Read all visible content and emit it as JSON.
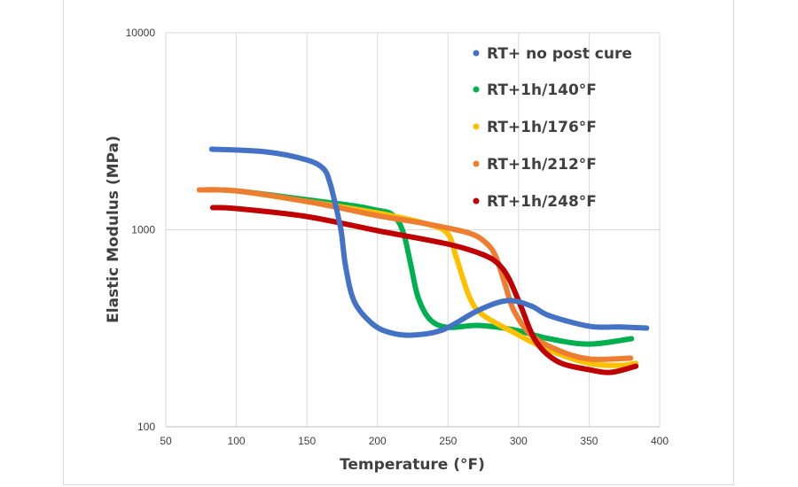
{
  "chart_data": {
    "type": "line",
    "title": "",
    "xlabel": "Temperature (°F)",
    "ylabel": "Elastic Modulus (MPa)",
    "xlim": [
      50,
      400
    ],
    "ylim": [
      100,
      10000
    ],
    "yscale": "log",
    "xticks": [
      50,
      100,
      150,
      200,
      250,
      300,
      350,
      400
    ],
    "xtick_labels": [
      "50",
      "100",
      "150",
      "200",
      "250",
      "300",
      "350",
      "400"
    ],
    "yticks": [
      100,
      1000,
      10000
    ],
    "ytick_labels": [
      "100",
      "1000",
      "10000"
    ],
    "grid": "vertical",
    "legend_position": "top-right",
    "series": [
      {
        "name": "RT+ no post cure",
        "color": "#4472C4",
        "x": [
          82.6,
          120.9,
          149.7,
          161.7,
          166.1,
          169.8,
          174.2,
          177.4,
          183.6,
          196.2,
          208.7,
          224.4,
          246.4,
          271.5,
          292.2,
          309.1,
          321.6,
          349.9,
          371.8,
          390.7
        ],
        "y": [
          2565,
          2485,
          2265,
          2042,
          1750,
          1378,
          990,
          655,
          432,
          334,
          301,
          292,
          311,
          390,
          437,
          410,
          367,
          324,
          321,
          317
        ]
      },
      {
        "name": "RT+1h/140°F",
        "color": "#00B050",
        "x": [
          73.8,
          99.6,
          149.7,
          183.6,
          199.9,
          208.7,
          215.0,
          219.4,
          223.8,
          228.8,
          237.0,
          249.5,
          271.5,
          296.6,
          321.6,
          349.9,
          380.0
        ],
        "y": [
          1593,
          1576,
          1422,
          1322,
          1256,
          1217,
          1098,
          911,
          655,
          455,
          352,
          320,
          327,
          311,
          280,
          263,
          280
        ]
      },
      {
        "name": "RT+1h/176°F",
        "color": "#FFC000",
        "x": [
          73.8,
          99.6,
          149.7,
          199.9,
          233.8,
          249.5,
          255.8,
          265.2,
          274.6,
          296.6,
          321.6,
          349.9,
          371.8,
          383.1
        ],
        "y": [
          1593,
          1576,
          1393,
          1217,
          1075,
          960,
          726,
          455,
          370,
          301,
          245,
          210,
          205,
          210
        ]
      },
      {
        "name": "RT+1h/212°F",
        "color": "#ED7D31",
        "x": [
          73.8,
          99.6,
          149.7,
          199.9,
          233.8,
          265.2,
          277.7,
          284.0,
          290.3,
          296.6,
          309.1,
          327.9,
          349.9,
          379.4
        ],
        "y": [
          1593,
          1576,
          1393,
          1180,
          1075,
          960,
          847,
          726,
          532,
          390,
          292,
          245,
          221,
          223
        ]
      },
      {
        "name": "RT+1h/248°F",
        "color": "#C00000",
        "x": [
          83.3,
          99.6,
          149.7,
          199.9,
          249.5,
          274.6,
          285.9,
          293.4,
          301.6,
          312.2,
          327.9,
          349.9,
          365.6,
          383.1
        ],
        "y": [
          1295,
          1282,
          1168,
          990,
          847,
          749,
          668,
          560,
          410,
          272,
          214,
          195,
          189,
          203
        ]
      }
    ]
  }
}
